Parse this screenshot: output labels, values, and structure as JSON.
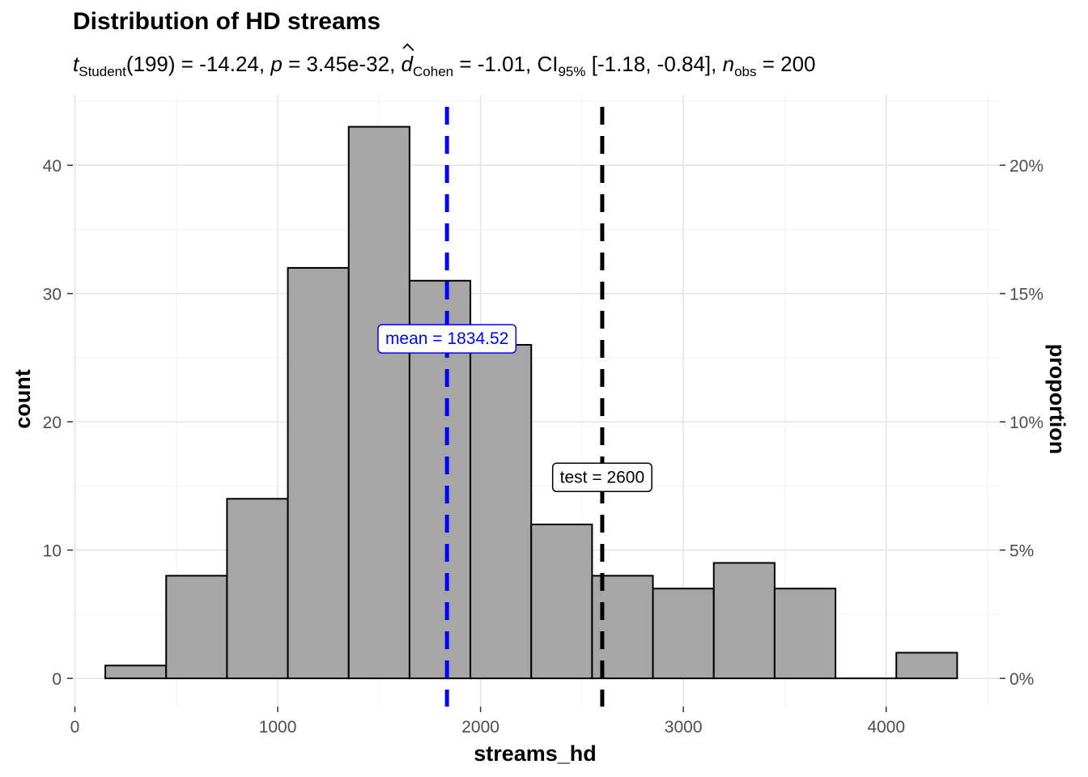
{
  "chart_data": {
    "type": "bar",
    "title": "Distribution of HD streams",
    "subtitle": {
      "t_label": "t",
      "t_sub": "Student",
      "t_part": "(199) = -14.24, ",
      "p_label": "p",
      "p_part": " = 3.45e-32, ",
      "d_label": "d",
      "d_sub": "Cohen",
      "d_part": " = -1.01, CI",
      "ci_sub": "95%",
      "ci_part": " [-1.18, -0.84], ",
      "n_label": "n",
      "n_sub": "obs",
      "n_part": " = 200"
    },
    "xlabel": "streams_hd",
    "ylabel": "count",
    "y2label": "proportion",
    "xlim": [
      -10,
      4560
    ],
    "ylim": [
      -2.2,
      45.5
    ],
    "x_ticks": [
      0,
      1000,
      2000,
      3000,
      4000
    ],
    "y_ticks": [
      0,
      10,
      20,
      30,
      40
    ],
    "y2_ticks": [
      "0%",
      "5%",
      "10%",
      "15%",
      "20%"
    ],
    "bins": [
      {
        "left": 150,
        "right": 450,
        "count": 1
      },
      {
        "left": 450,
        "right": 750,
        "count": 8
      },
      {
        "left": 750,
        "right": 1050,
        "count": 14
      },
      {
        "left": 1050,
        "right": 1350,
        "count": 32
      },
      {
        "left": 1350,
        "right": 1650,
        "count": 43
      },
      {
        "left": 1650,
        "right": 1950,
        "count": 31
      },
      {
        "left": 1950,
        "right": 2250,
        "count": 26
      },
      {
        "left": 2250,
        "right": 2550,
        "count": 12
      },
      {
        "left": 2550,
        "right": 2850,
        "count": 8
      },
      {
        "left": 2850,
        "right": 3150,
        "count": 7
      },
      {
        "left": 3150,
        "right": 3450,
        "count": 9
      },
      {
        "left": 3450,
        "right": 3750,
        "count": 7
      },
      {
        "left": 3750,
        "right": 4050,
        "count": 0
      },
      {
        "left": 4050,
        "right": 4350,
        "count": 2
      }
    ],
    "bar_color": "#a6a6a6",
    "grid": true,
    "lines": [
      {
        "name": "mean",
        "value": 1834.52,
        "label": "mean = 1834.52",
        "color": "#0000ff",
        "label_y": 26.5
      },
      {
        "name": "test",
        "value": 2600,
        "label": "test = 2600",
        "color": "#000000",
        "label_y": 15.7
      }
    ]
  }
}
